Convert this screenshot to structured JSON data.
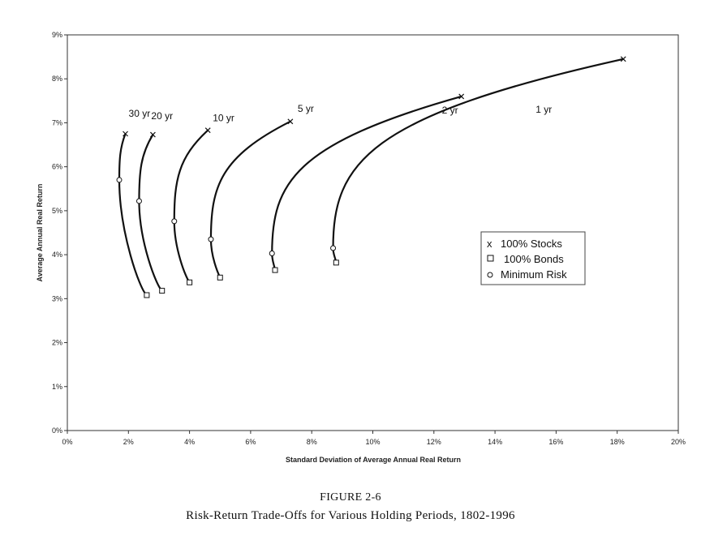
{
  "figure": {
    "number": "FIGURE 2-6",
    "title": "Risk-Return Trade-Offs for Various Holding Periods, 1802-1996"
  },
  "chart_data": {
    "type": "line",
    "xlabel": "Standard Deviation of Average Annual Real Return",
    "ylabel": "Average Annual Real Return",
    "xlim": [
      0,
      20
    ],
    "ylim": [
      0,
      9
    ],
    "x_ticks": [
      "0%",
      "2%",
      "4%",
      "6%",
      "8%",
      "10%",
      "12%",
      "14%",
      "16%",
      "18%",
      "20%"
    ],
    "y_ticks": [
      "0%",
      "1%",
      "2%",
      "3%",
      "4%",
      "5%",
      "6%",
      "7%",
      "8%",
      "9%"
    ],
    "grid": false,
    "legend": {
      "placement": "right-middle",
      "entries": [
        {
          "marker": "x",
          "label": "100% Stocks"
        },
        {
          "marker": "square",
          "label": "100% Bonds"
        },
        {
          "marker": "circle",
          "label": "Minimum Risk"
        }
      ]
    },
    "series": [
      {
        "name": "1 yr",
        "stocks": [
          18.2,
          8.45
        ],
        "min_risk": [
          8.7,
          4.15
        ],
        "bonds": [
          8.8,
          3.82
        ]
      },
      {
        "name": "2 yr",
        "stocks": [
          12.9,
          7.6
        ],
        "min_risk": [
          6.7,
          4.03
        ],
        "bonds": [
          6.8,
          3.65
        ]
      },
      {
        "name": "5 yr",
        "stocks": [
          7.3,
          7.03
        ],
        "min_risk": [
          4.7,
          4.35
        ],
        "bonds": [
          5.0,
          3.48
        ]
      },
      {
        "name": "10 yr",
        "stocks": [
          4.6,
          6.83
        ],
        "min_risk": [
          3.5,
          4.76
        ],
        "bonds": [
          4.0,
          3.37
        ]
      },
      {
        "name": "20 yr",
        "stocks": [
          2.8,
          6.73
        ],
        "min_risk": [
          2.35,
          5.22
        ],
        "bonds": [
          3.1,
          3.18
        ]
      },
      {
        "name": "30 yr",
        "stocks": [
          1.9,
          6.75
        ],
        "min_risk": [
          1.7,
          5.7
        ],
        "bonds": [
          2.6,
          3.08
        ]
      }
    ]
  },
  "colors": {
    "line": "#111111",
    "axis": "#333333",
    "background": "#ffffff"
  }
}
